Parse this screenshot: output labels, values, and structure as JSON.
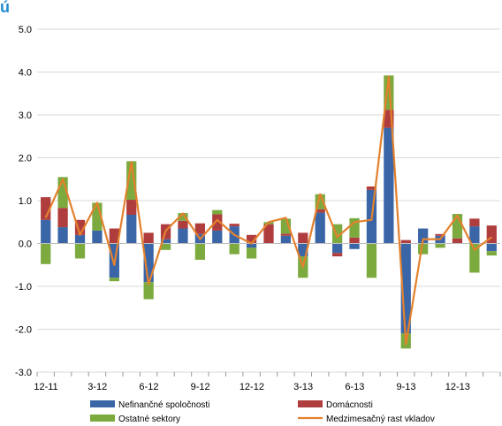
{
  "header": {
    "title_fragment": "ú"
  },
  "chart_data": {
    "type": "bar",
    "stacked": true,
    "ylim": [
      -3.0,
      5.0
    ],
    "y_ticks": [
      "5.0",
      "4.0",
      "3.0",
      "2.0",
      "1.0",
      "0.0",
      "-1.0",
      "-2.0",
      "-3.0"
    ],
    "y_tick_values": [
      5,
      4,
      3,
      2,
      1,
      0,
      -1,
      -2,
      -3
    ],
    "grid": true,
    "legend_placement": "bottom",
    "categories": [
      "12-11",
      "1-12",
      "2-12",
      "3-12",
      "4-12",
      "5-12",
      "6-12",
      "7-12",
      "8-12",
      "9-12",
      "10-12",
      "11-12",
      "12-12",
      "1-13",
      "2-13",
      "3-13",
      "4-13",
      "5-13",
      "6-13",
      "7-13",
      "8-13",
      "9-13",
      "10-13",
      "11-13",
      "12-13",
      "1-14",
      "2-14"
    ],
    "x_tick_labels": [
      {
        "index": 0,
        "label": "12-11"
      },
      {
        "index": 3,
        "label": "3-12"
      },
      {
        "index": 6,
        "label": "6-12"
      },
      {
        "index": 9,
        "label": "9-12"
      },
      {
        "index": 12,
        "label": "12-12"
      },
      {
        "index": 15,
        "label": "3-13"
      },
      {
        "index": 18,
        "label": "6-13"
      },
      {
        "index": 21,
        "label": "9-13"
      },
      {
        "index": 24,
        "label": "12-13"
      }
    ],
    "series": [
      {
        "name": "Nefinančné spoločnosti",
        "color": "#3a66a8",
        "kind": "bar",
        "values": [
          0.55,
          0.38,
          0.2,
          0.3,
          -0.8,
          0.67,
          -0.9,
          0.1,
          0.35,
          0.22,
          0.3,
          0.4,
          -0.1,
          0.0,
          0.18,
          -0.3,
          0.72,
          -0.22,
          -0.13,
          1.25,
          2.7,
          -2.1,
          0.35,
          0.18,
          0.0,
          0.4,
          -0.18
        ]
      },
      {
        "name": "Domácnosti",
        "color": "#b03d3d",
        "kind": "bar",
        "values": [
          0.53,
          0.45,
          0.35,
          0.0,
          0.35,
          0.35,
          0.25,
          0.35,
          0.18,
          0.25,
          0.38,
          0.06,
          0.2,
          0.45,
          0.05,
          0.25,
          0.08,
          -0.08,
          0.14,
          0.08,
          0.42,
          0.08,
          0.0,
          0.04,
          0.12,
          0.18,
          0.42
        ]
      },
      {
        "name": "Ostatné sektory",
        "color": "#7caa3e",
        "kind": "bar",
        "values": [
          -0.48,
          0.72,
          -0.35,
          0.65,
          -0.08,
          0.9,
          -0.4,
          -0.15,
          0.18,
          -0.38,
          0.1,
          -0.25,
          -0.25,
          0.05,
          0.35,
          -0.5,
          0.35,
          0.45,
          0.45,
          -0.8,
          0.8,
          -0.35,
          -0.25,
          -0.1,
          0.57,
          -0.68,
          -0.1
        ]
      },
      {
        "name": "Medzimesačný rast vkladov",
        "color": "#e3812e",
        "kind": "line",
        "values": [
          0.6,
          1.5,
          0.2,
          0.95,
          -0.5,
          1.9,
          -0.95,
          0.3,
          0.7,
          0.1,
          0.55,
          0.2,
          0.0,
          0.5,
          0.6,
          -0.55,
          1.15,
          0.15,
          0.5,
          0.55,
          3.9,
          -2.35,
          0.1,
          0.1,
          0.65,
          -0.15,
          0.15
        ]
      }
    ]
  }
}
